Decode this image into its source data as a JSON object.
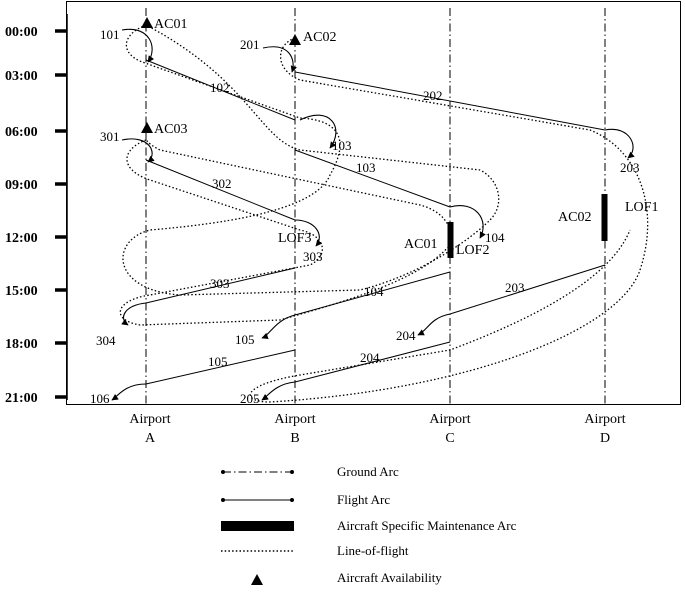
{
  "time_axis": {
    "ticks": [
      "00:00",
      "03:00",
      "06:00",
      "09:00",
      "12:00",
      "15:00",
      "18:00",
      "21:00"
    ]
  },
  "airports": [
    {
      "id": "A",
      "word": "Airport",
      "letter": "A"
    },
    {
      "id": "B",
      "word": "Airport",
      "letter": "B"
    },
    {
      "id": "C",
      "word": "Airport",
      "letter": "C"
    },
    {
      "id": "D",
      "word": "Airport",
      "letter": "D"
    }
  ],
  "flights": [
    {
      "number": "102",
      "from": "A",
      "dep": "03:00",
      "to": "B",
      "arr": "06:00"
    },
    {
      "number": "103",
      "from": "B",
      "dep": "07:00",
      "to": "C",
      "arr": "11:00"
    },
    {
      "number": "104",
      "from": "C",
      "dep": "14:00",
      "to": "B",
      "arr": "17:00"
    },
    {
      "number": "105",
      "from": "B",
      "dep": "18:30",
      "to": "A",
      "arr": "20:30"
    },
    {
      "number": "202",
      "from": "B",
      "dep": "03:00",
      "to": "D",
      "arr": "07:00"
    },
    {
      "number": "203",
      "from": "D",
      "dep": "13:30",
      "to": "C",
      "arr": "16:30"
    },
    {
      "number": "204",
      "from": "C",
      "dep": "18:00",
      "to": "B",
      "arr": "21:00"
    },
    {
      "number": "302",
      "from": "A",
      "dep": "08:30",
      "to": "B",
      "arr": "11:30"
    },
    {
      "number": "303",
      "from": "B",
      "dep": "13:30",
      "to": "A",
      "arr": "16:00"
    }
  ],
  "labels": {
    "line_of_flight_start": [
      "101",
      "201",
      "301"
    ],
    "connections": [
      "103",
      "104",
      "105",
      "106",
      "203",
      "204",
      "205",
      "303",
      "304"
    ],
    "aircraft": [
      "AC01",
      "AC02",
      "AC03"
    ],
    "maintenance_aircraft": [
      "AC01",
      "AC02"
    ],
    "lines_of_flight": [
      "LOF1",
      "LOF2",
      "LOF3"
    ]
  },
  "legend": {
    "ground_arc": "Ground Arc",
    "flight_arc": "Flight Arc",
    "maintenance_arc": "Aircraft Specific Maintenance Arc",
    "line_of_flight": "Line-of-flight",
    "availability": "Aircraft Availability"
  }
}
